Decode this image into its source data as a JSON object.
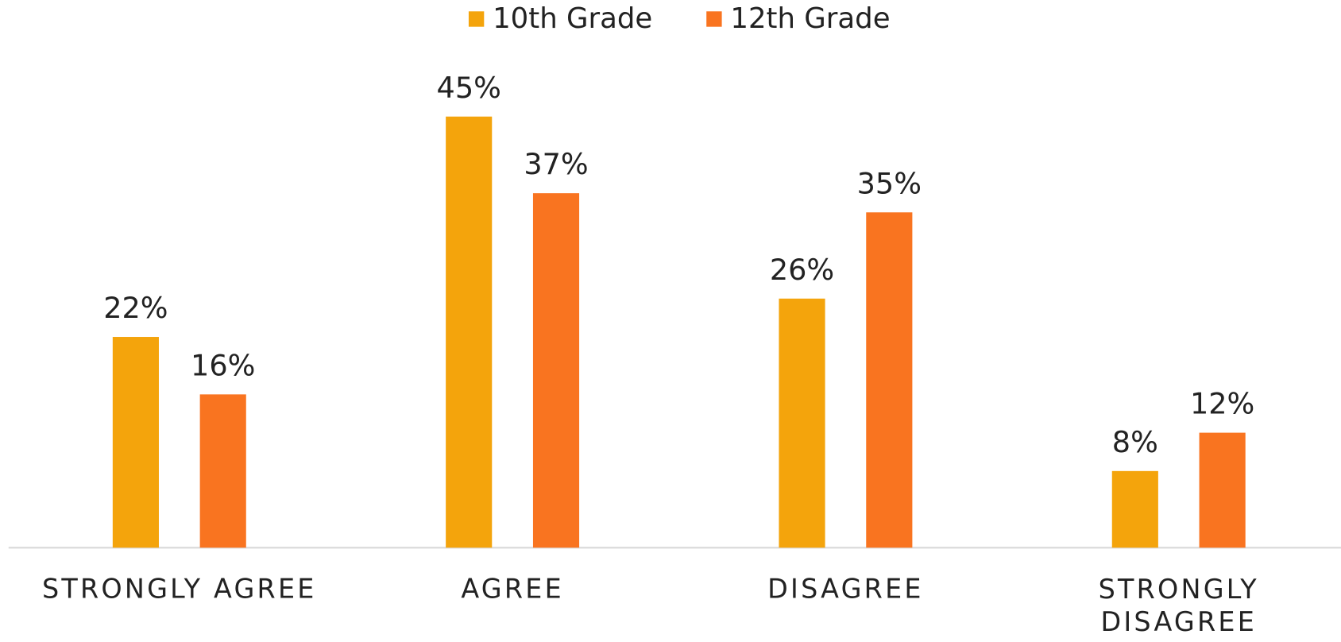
{
  "chart_data": {
    "type": "bar",
    "categories": [
      "STRONGLY AGREE",
      "AGREE",
      "DISAGREE",
      "STRONGLY DISAGREE"
    ],
    "series": [
      {
        "name": "10th Grade",
        "color": "#f4a40c",
        "values": [
          22,
          45,
          26,
          8
        ],
        "value_labels": [
          "22%",
          "45%",
          "26%",
          "8%"
        ]
      },
      {
        "name": "12th Grade",
        "color": "#f97420",
        "values": [
          16,
          37,
          35,
          12
        ],
        "value_labels": [
          "16%",
          "37%",
          "35%",
          "12%"
        ]
      }
    ],
    "ylim": [
      0,
      50
    ],
    "legend": "top",
    "grid": false
  }
}
